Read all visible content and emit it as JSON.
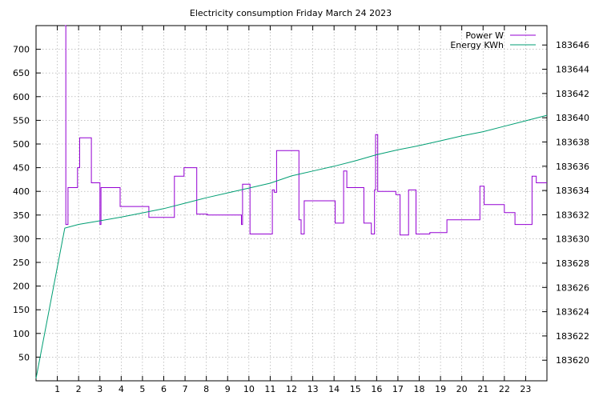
{
  "chart_data": {
    "type": "line",
    "title": "Electricity consumption Friday March 24 2023",
    "xlabel": "",
    "ylabel": "",
    "y2label": "",
    "xlim": [
      0,
      24
    ],
    "ylim": [
      0,
      750
    ],
    "y2lim": [
      183618.3,
      183647.6
    ],
    "x_ticks": [
      1,
      2,
      3,
      4,
      5,
      6,
      7,
      8,
      9,
      10,
      11,
      12,
      13,
      14,
      15,
      16,
      17,
      18,
      19,
      20,
      21,
      22,
      23
    ],
    "y_ticks": [
      50,
      100,
      150,
      200,
      250,
      300,
      350,
      400,
      450,
      500,
      550,
      600,
      650,
      700
    ],
    "y2_ticks": [
      183620,
      183622,
      183624,
      183626,
      183628,
      183630,
      183632,
      183634,
      183636,
      183638,
      183640,
      183642,
      183644,
      183646
    ],
    "grid": true,
    "legend_position": "top-right",
    "series": [
      {
        "name": "Power W",
        "axis": "y",
        "color": "#9400d3",
        "step": true,
        "x": [
          0,
          1.35,
          1.4,
          1.5,
          1.8,
          1.95,
          2.05,
          2.55,
          2.6,
          2.9,
          3.0,
          3.05,
          3.8,
          3.95,
          5.2,
          5.3,
          6.45,
          6.5,
          6.8,
          6.95,
          7.5,
          7.55,
          8.0,
          8.05,
          9.6,
          9.65,
          9.7,
          10.05,
          11.0,
          11.1,
          11.2,
          11.3,
          12.15,
          12.35,
          12.45,
          12.6,
          13.95,
          14.05,
          14.45,
          14.55,
          14.6,
          15.4,
          15.55,
          15.75,
          15.85,
          15.9,
          15.95,
          16.05,
          16.6,
          16.9,
          16.95,
          17.1,
          17.35,
          17.5,
          17.85,
          18.5,
          18.6,
          19.3,
          20.85,
          20.95,
          21.05,
          21.5,
          22.0,
          22.45,
          22.5,
          23.3,
          23.35,
          23.5,
          23.85
        ],
        "values": [
          null,
          750,
          330,
          408,
          408,
          450,
          513,
          513,
          418,
          418,
          330,
          408,
          408,
          368,
          368,
          345,
          345,
          432,
          432,
          450,
          450,
          352,
          352,
          350,
          350,
          330,
          415,
          310,
          310,
          403,
          398,
          486,
          486,
          340,
          310,
          380,
          380,
          333,
          443,
          443,
          408,
          333,
          333,
          310,
          310,
          403,
          520,
          400,
          400,
          393,
          393,
          308,
          308,
          403,
          310,
          313,
          313,
          340,
          411,
          411,
          372,
          372,
          355,
          355,
          330,
          432,
          432,
          418,
          418
        ]
      },
      {
        "name": "Energy KWh",
        "axis": "y2",
        "color": "#009e73",
        "step": false,
        "x": [
          0,
          1.35,
          2,
          3,
          4,
          5,
          6,
          7,
          8,
          9,
          10,
          11,
          12,
          13,
          14,
          15,
          16,
          17,
          18,
          19,
          20,
          21,
          22,
          23,
          24
        ],
        "values": [
          183618.5,
          183630.9,
          183631.2,
          183631.5,
          183631.8,
          183632.15,
          183632.5,
          183632.95,
          183633.4,
          183633.8,
          183634.2,
          183634.6,
          183635.2,
          183635.6,
          183636.0,
          183636.45,
          183636.95,
          183637.35,
          183637.7,
          183638.1,
          183638.5,
          183638.85,
          183639.3,
          183639.75,
          183640.2
        ]
      }
    ]
  }
}
